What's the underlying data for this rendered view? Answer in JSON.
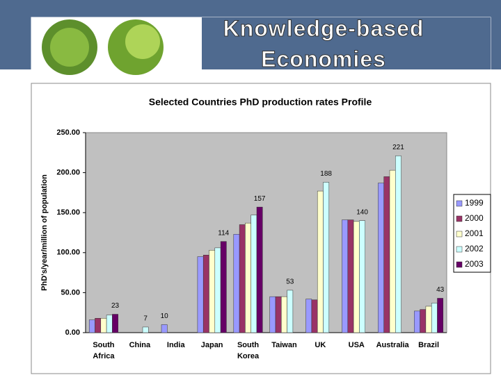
{
  "header": {
    "title": "Knowledge-based Economies"
  },
  "chart_data": {
    "type": "bar",
    "title": "Selected Countries PhD production rates Profile",
    "y_label": "PhD's/year/million of population",
    "categories": [
      "South Africa",
      "China",
      "India",
      "Japan",
      "South Korea",
      "Taiwan",
      "UK",
      "USA",
      "Australia",
      "Brazil"
    ],
    "series": [
      {
        "name": "1999",
        "color": "#9999ff",
        "values": [
          16,
          null,
          10,
          95,
          123,
          45,
          42,
          141,
          187,
          27
        ],
        "value_labels": [
          null,
          null,
          10,
          null,
          null,
          null,
          null,
          null,
          null,
          null
        ]
      },
      {
        "name": "2000",
        "color": "#993366",
        "values": [
          18,
          null,
          null,
          97,
          135,
          45,
          41,
          141,
          195,
          29
        ],
        "value_labels": [
          null,
          null,
          null,
          null,
          null,
          null,
          null,
          null,
          null,
          null
        ]
      },
      {
        "name": "2001",
        "color": "#ffffcc",
        "values": [
          18,
          null,
          null,
          103,
          137,
          45,
          177,
          139,
          203,
          33
        ],
        "value_labels": [
          null,
          null,
          null,
          null,
          null,
          null,
          null,
          null,
          null,
          null
        ]
      },
      {
        "name": "2002",
        "color": "#ccffff",
        "values": [
          22,
          7,
          null,
          106,
          147,
          53,
          188,
          140,
          221,
          37
        ],
        "value_labels": [
          null,
          7,
          null,
          null,
          null,
          53,
          188,
          140,
          221,
          null
        ]
      },
      {
        "name": "2003",
        "color": "#660066",
        "values": [
          23,
          null,
          null,
          114,
          157,
          null,
          null,
          null,
          null,
          43
        ],
        "value_labels": [
          23,
          null,
          null,
          114,
          157,
          null,
          null,
          null,
          null,
          43
        ]
      }
    ],
    "ylim": [
      0,
      250
    ],
    "yticks": [
      {
        "value": 0,
        "label": "0.00"
      },
      {
        "value": 50,
        "label": "50.00"
      },
      {
        "value": 100,
        "label": "100.00"
      },
      {
        "value": 150,
        "label": "150.00"
      },
      {
        "value": 200,
        "label": "200.00"
      },
      {
        "value": 250,
        "label": "250.00"
      }
    ],
    "legend": "right",
    "plot_background": "#c0c0c0",
    "grid": false
  }
}
